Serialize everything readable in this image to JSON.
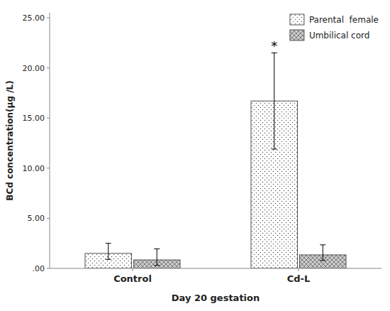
{
  "chart_data": {
    "type": "bar",
    "categories": [
      "Control",
      "Cd-L"
    ],
    "series": [
      {
        "name": "Parental  female",
        "color": "#ffffff",
        "values": [
          1.5,
          16.7
        ],
        "errors_upper": [
          1.0,
          4.8
        ],
        "errors_lower": [
          0.6,
          4.8
        ]
      },
      {
        "name": "Umbilical cord",
        "color": "#cccccc",
        "values": [
          0.85,
          1.35
        ],
        "errors_upper": [
          1.1,
          1.0
        ],
        "errors_lower": [
          0.55,
          0.55
        ]
      }
    ],
    "ylabel": "BCd concentration(μg /L)",
    "xlabel": "Day 20 gestation",
    "ylim": [
      0,
      25.5
    ],
    "yticks": [
      {
        "value": 0.0,
        "label": ".00"
      },
      {
        "value": 5.0,
        "label": "5.00"
      },
      {
        "value": 10.0,
        "label": "10.00"
      },
      {
        "value": 15.0,
        "label": "15.00"
      },
      {
        "value": 20.0,
        "label": "20.00"
      },
      {
        "value": 25.0,
        "label": "25.00"
      }
    ],
    "annotations": [
      {
        "text": "*",
        "category": "Cd-L",
        "series": "Parental  female"
      }
    ],
    "legend": "upper right",
    "grid": false
  }
}
